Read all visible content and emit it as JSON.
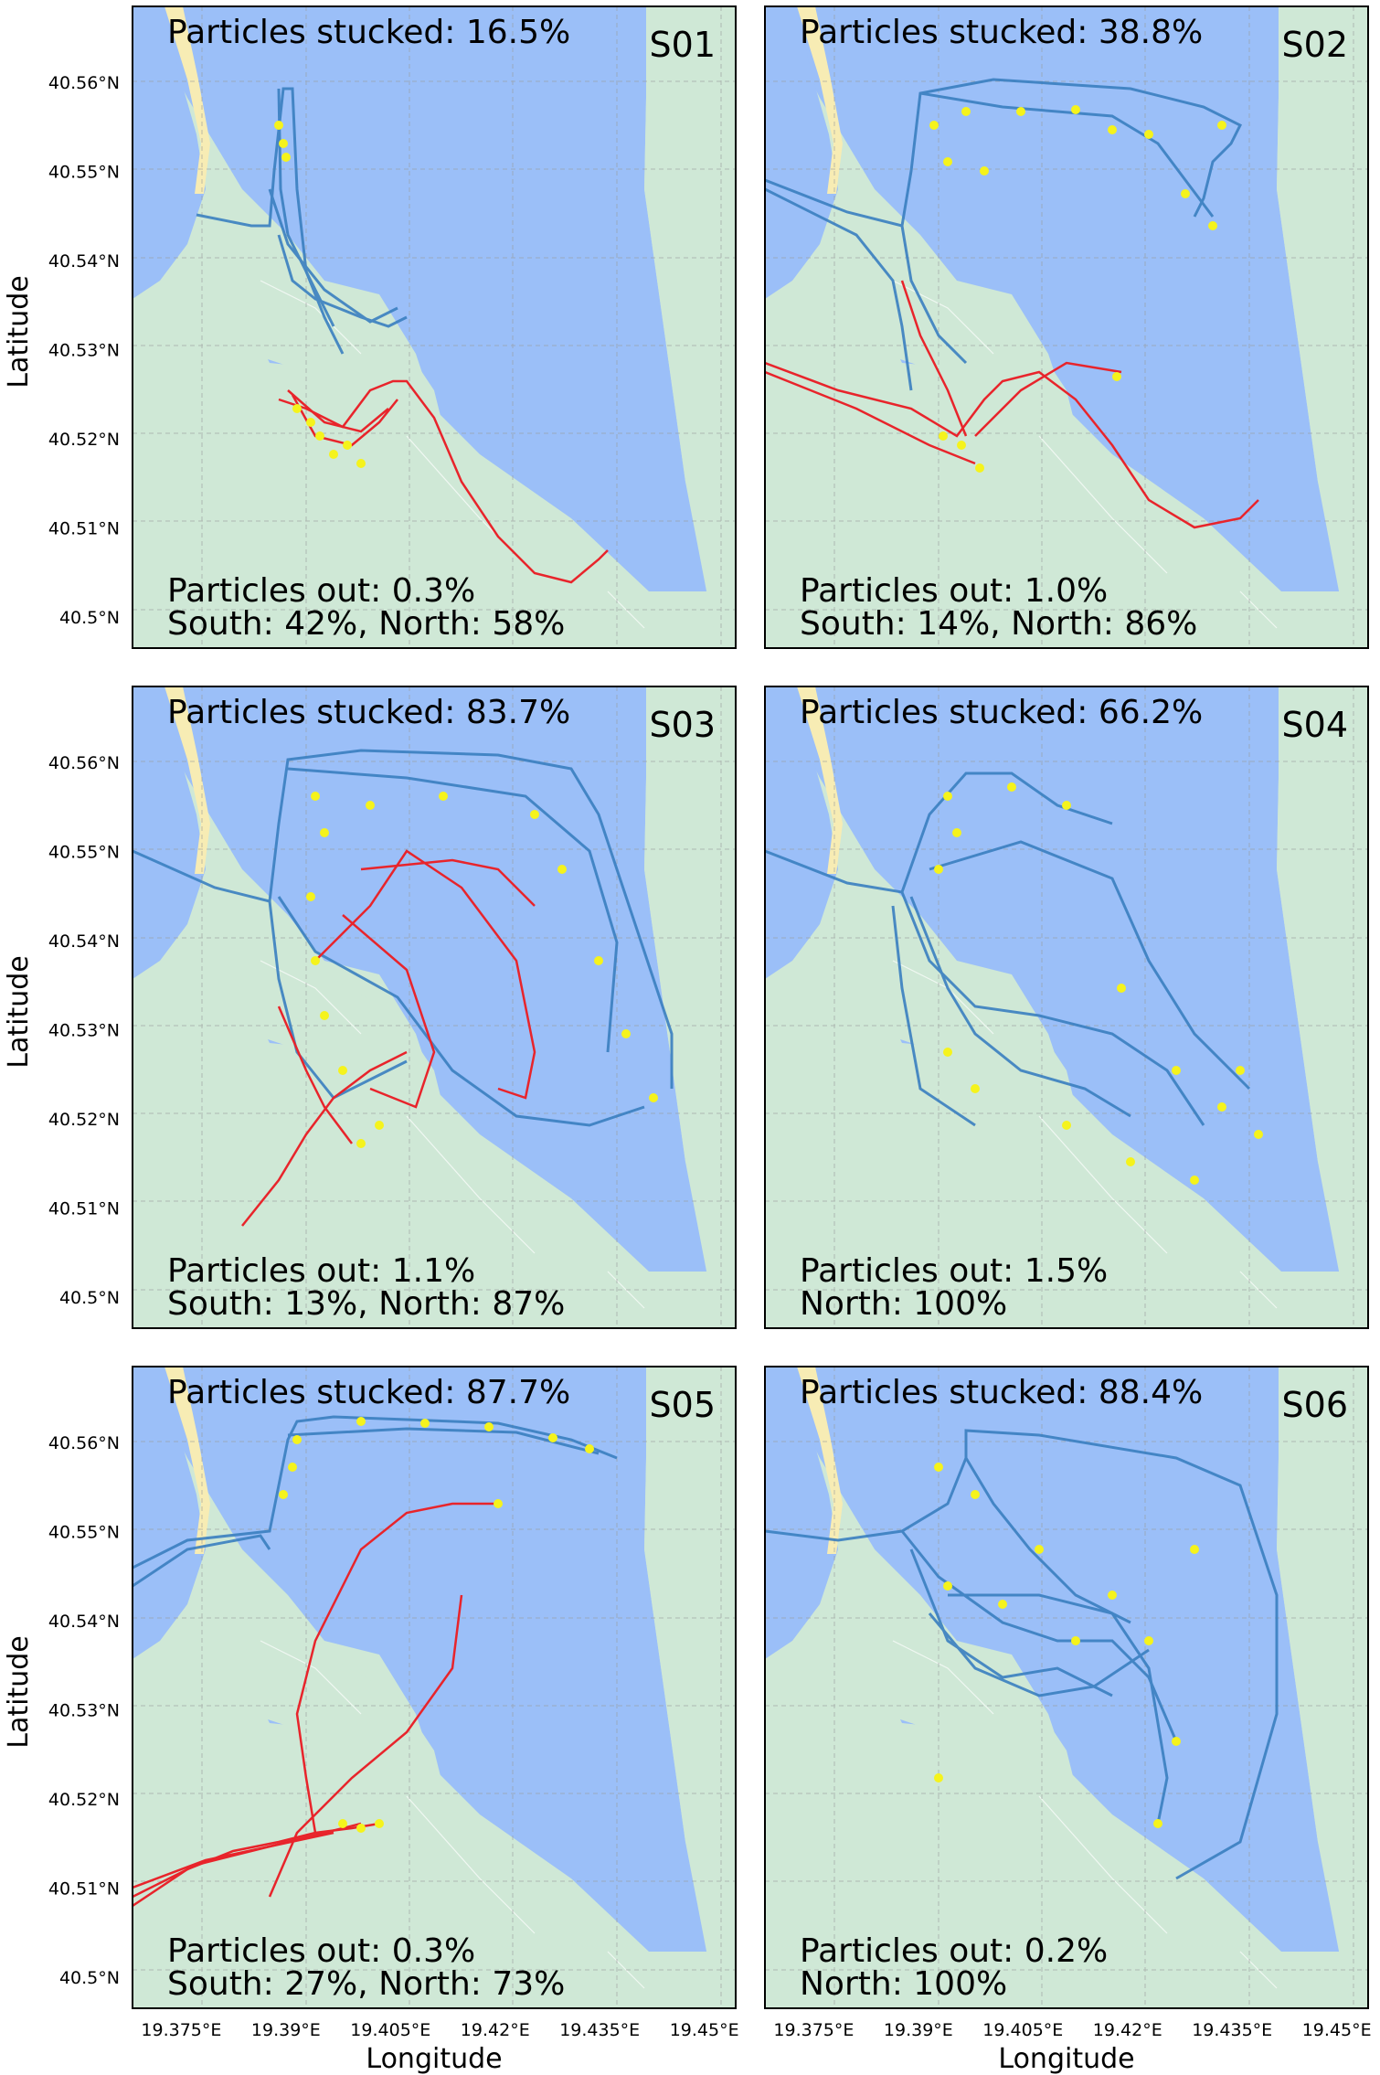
{
  "chart_data": {
    "type": "map-trajectories",
    "x_ticks": [
      "19.375°E",
      "19.39°E",
      "19.405°E",
      "19.42°E",
      "19.435°E",
      "19.45°E"
    ],
    "y_ticks": [
      "40.5°N",
      "40.51°N",
      "40.52°N",
      "40.53°N",
      "40.54°N",
      "40.55°N",
      "40.56°N"
    ],
    "xlim": [
      19.368,
      19.4545
    ],
    "ylim": [
      40.4965,
      40.5685
    ],
    "xlabel": "Longitude",
    "ylabel": "Latitude",
    "grid": true,
    "series_colors": {
      "north_tracks": "#3a7fc0",
      "south_tracks": "#e8242b",
      "stuck_particles": "#f5f31c"
    },
    "map_colors": {
      "water": "#9bbff8",
      "land": "#cfe8d6",
      "beach": "#f7ecb4"
    },
    "panels": [
      {
        "name": "S01",
        "stuck": "Particles stucked: 16.5%",
        "out": "Particles out: 0.3%",
        "split": "South: 42%, North: 58%",
        "south_pct": 42,
        "north_pct": 58
      },
      {
        "name": "S02",
        "stuck": "Particles stucked: 38.8%",
        "out": "Particles out: 1.0%",
        "split": "South: 14%, North: 86%",
        "south_pct": 14,
        "north_pct": 86
      },
      {
        "name": "S03",
        "stuck": "Particles stucked: 83.7%",
        "out": "Particles out: 1.1%",
        "split": "South: 13%, North: 87%",
        "south_pct": 13,
        "north_pct": 87
      },
      {
        "name": "S04",
        "stuck": "Particles stucked: 66.2%",
        "out": "Particles out: 1.5%",
        "split": "North: 100%",
        "south_pct": 0,
        "north_pct": 100
      },
      {
        "name": "S05",
        "stuck": "Particles stucked: 87.7%",
        "out": "Particles out: 0.3%",
        "split": "South: 27%, North: 73%",
        "south_pct": 27,
        "north_pct": 73
      },
      {
        "name": "S06",
        "stuck": "Particles stucked: 88.4%",
        "out": "Particles out: 0.2%",
        "split": "North: 100%",
        "south_pct": 0,
        "north_pct": 100
      }
    ]
  }
}
